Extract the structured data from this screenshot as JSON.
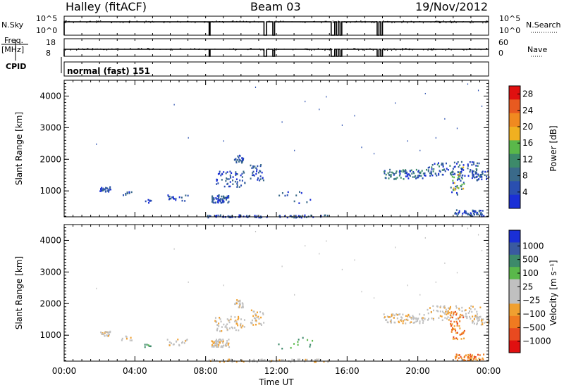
{
  "header": {
    "station": "Halley (fitACF)",
    "beam": "Beam 03",
    "date": "19/Nov/2012"
  },
  "summary": {
    "nsky_label": "N.Sky",
    "nsearch_label": "N.Search",
    "nsky_ticks": [
      "10^5",
      "10^0"
    ],
    "nsearch_ticks": [
      "10^5",
      "10^0"
    ],
    "freq_label": "Freq.",
    "freq_unit": "[MHz]",
    "freq_ticks": [
      "18",
      "8"
    ],
    "nave_label": "Nave",
    "nave_ticks": [
      "60",
      "0"
    ],
    "cpid_label": "CPID",
    "cpid_value": "normal (fast) 151"
  },
  "colors": {
    "power_scale": [
      "#1a2fd6",
      "#2a4fb0",
      "#3a6a8a",
      "#3d8a6a",
      "#5ab84a",
      "#f0b020",
      "#f08a20",
      "#e85a20",
      "#e01010"
    ],
    "velocity_scale": [
      "#e01010",
      "#e84a20",
      "#f07a20",
      "#f0a030",
      "#c0c0c0",
      "#c0c0c0",
      "#5ab84a",
      "#3d8a6a",
      "#3a5aa0",
      "#1a2fd6"
    ]
  },
  "chart_data": [
    {
      "type": "heatmap",
      "title": "Power",
      "ylabel": "Slant Range [km]",
      "xlabel": "",
      "ylim": [
        180,
        4500
      ],
      "y_ticks": [
        "1000",
        "2000",
        "3000",
        "4000"
      ],
      "colorbar_label": "Power [dB]",
      "colorbar_ticks": [
        "4",
        "8",
        "12",
        "16",
        "20",
        "24",
        "28"
      ],
      "clim": [
        0,
        30
      ]
    },
    {
      "type": "heatmap",
      "title": "Velocity",
      "ylabel": "Slant Range [km]",
      "xlabel": "Time UT",
      "ylim": [
        180,
        4500
      ],
      "x_ticks": [
        "00:00",
        "04:00",
        "08:00",
        "12:00",
        "16:00",
        "20:00",
        "00:00"
      ],
      "y_ticks": [
        "1000",
        "2000",
        "3000",
        "4000"
      ],
      "colorbar_label": "Velocity [m s⁻¹]",
      "colorbar_ticks": [
        "1000",
        "500",
        "100",
        "25",
        "−25",
        "−100",
        "−500",
        "−1000"
      ]
    }
  ]
}
